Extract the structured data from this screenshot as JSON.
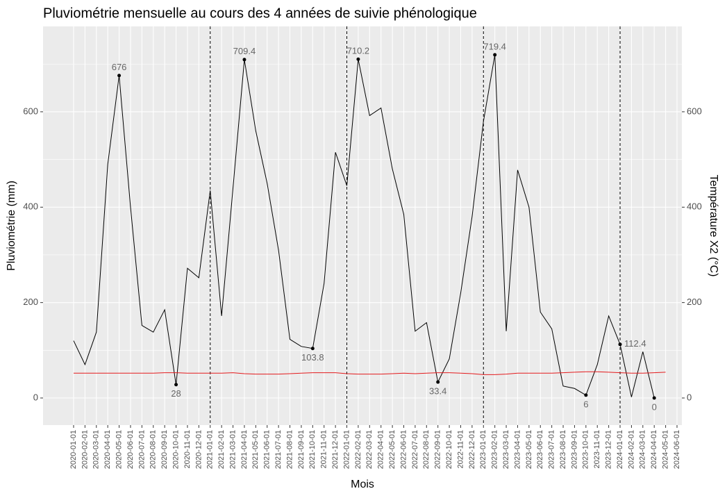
{
  "chart_data": {
    "type": "line",
    "title": "Pluviométrie mensuelle au cours des 4 années de suivie phénologique",
    "x_label": "Mois",
    "y_label": "Pluviométrie (mm)",
    "y2_label": "Température X2 (°C)",
    "categories": [
      "2020-01-01",
      "2020-02-01",
      "2020-03-01",
      "2020-04-01",
      "2020-05-01",
      "2020-06-01",
      "2020-07-01",
      "2020-08-01",
      "2020-09-01",
      "2020-10-01",
      "2020-11-01",
      "2020-12-01",
      "2021-01-01",
      "2021-02-01",
      "2021-03-01",
      "2021-04-01",
      "2021-05-01",
      "2021-06-01",
      "2021-07-01",
      "2021-08-01",
      "2021-09-01",
      "2021-10-01",
      "2021-11-01",
      "2021-12-01",
      "2022-01-01",
      "2022-02-01",
      "2022-03-01",
      "2022-04-01",
      "2022-05-01",
      "2022-06-01",
      "2022-07-01",
      "2022-08-01",
      "2022-09-01",
      "2022-10-01",
      "2022-11-01",
      "2022-12-01",
      "2023-01-01",
      "2023-02-01",
      "2023-03-01",
      "2023-04-01",
      "2023-05-01",
      "2023-06-01",
      "2023-07-01",
      "2023-08-01",
      "2023-09-01",
      "2023-10-01",
      "2023-11-01",
      "2023-12-01",
      "2024-01-01",
      "2024-02-01",
      "2024-03-01",
      "2024-04-01",
      "2024-05-01",
      "2024-06-01"
    ],
    "series": [
      {
        "color": "#000000",
        "values": [
          120,
          70,
          138,
          490,
          676,
          400,
          152,
          138,
          185,
          28,
          272,
          252,
          435,
          172,
          440,
          709.4,
          560,
          450,
          310,
          123,
          108,
          103.8,
          240,
          515,
          445,
          710.2,
          592,
          608,
          480,
          385,
          140,
          158,
          33.4,
          82,
          220,
          380,
          580,
          719.4,
          140,
          478,
          400,
          180,
          145,
          25,
          20,
          6,
          70,
          172,
          112.4,
          2,
          97,
          0,
          null,
          null
        ],
        "labeled_points": [
          4,
          9,
          15,
          21,
          25,
          32,
          37,
          45,
          48,
          51
        ]
      },
      {
        "color": "#e41a1c",
        "axis": "y2",
        "values": [
          52,
          52,
          52,
          52,
          52,
          52,
          52,
          52,
          53,
          53,
          52,
          52,
          52,
          52,
          53,
          51,
          50,
          50,
          50,
          51,
          52,
          53,
          53,
          53,
          51,
          50,
          50,
          50,
          51,
          52,
          51,
          52,
          53,
          53,
          52,
          51,
          49,
          49,
          50,
          52,
          52,
          52,
          52,
          53,
          54,
          55,
          55,
          54,
          53,
          52,
          52,
          53,
          54,
          null
        ]
      }
    ],
    "vlines": [
      "2021-01-01",
      "2022-01-01",
      "2023-01-01",
      "2024-01-01"
    ],
    "ylim": [
      -56.8,
      779
    ],
    "yticks": [
      0,
      200,
      400,
      600
    ],
    "y_minor_ticks": [
      100,
      300,
      500,
      700
    ],
    "y2lim": [
      -56.8,
      779
    ],
    "y2ticks": [
      0,
      200,
      400,
      600
    ],
    "grid": true
  }
}
